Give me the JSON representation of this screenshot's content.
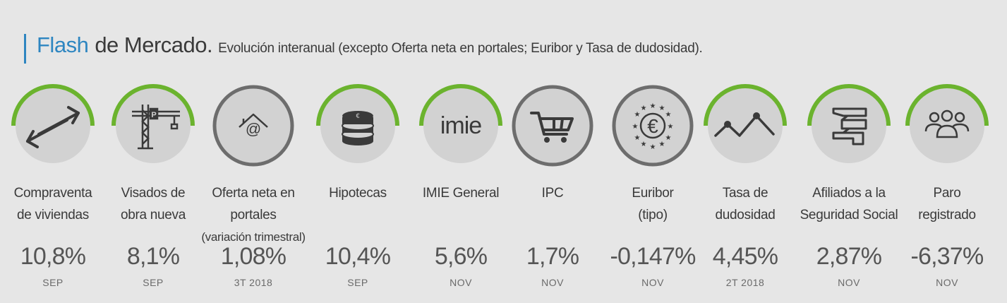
{
  "header": {
    "title_part1": "Flash",
    "title_part2": "de Mercado.",
    "subtitle": "Evolución interanual (excepto Oferta neta en portales; Euribor y Tasa de dudosidad).",
    "accent_color": "#2e86c1"
  },
  "colors": {
    "arc": "#6bb32e",
    "circle": "#d2d2d2",
    "icon": "#3a3a3a"
  },
  "items": [
    {
      "icon": "exchange-arrows-icon",
      "label_line1": "Compraventa",
      "label_line2": "de viviendas",
      "value": "10,8%",
      "period": "SEP"
    },
    {
      "icon": "crane-icon",
      "label_line1": "Visados de",
      "label_line2": "obra nueva",
      "value": "8,1%",
      "period": "SEP"
    },
    {
      "icon": "house-at-icon",
      "label_line1": "Oferta neta en portales",
      "label_line2": "(variación trimestral)",
      "value": "1,08%",
      "period": "3T 2018"
    },
    {
      "icon": "coin-stack-icon",
      "label_line1": "Hipotecas",
      "label_line2": "",
      "value": "10,4%",
      "period": "SEP"
    },
    {
      "icon": "imie-logo-icon",
      "icon_text": "imie",
      "label_line1": "IMIE General",
      "label_line2": "",
      "value": "5,6%",
      "period": "NOV"
    },
    {
      "icon": "shopping-cart-icon",
      "label_line1": "IPC",
      "label_line2": "",
      "value": "1,7%",
      "period": "NOV"
    },
    {
      "icon": "euro-stars-icon",
      "label_line1": "Euribor",
      "label_line2": "(tipo)",
      "value": "-0,147%",
      "period": "NOV"
    },
    {
      "icon": "trend-line-icon",
      "label_line1": "Tasa de",
      "label_line2": "dudosidad",
      "value": "4,45%",
      "period": "2T 2018"
    },
    {
      "icon": "ss-logo-icon",
      "label_line1": "Afiliados a la",
      "label_line2": "Seguridad Social",
      "value": "2,87%",
      "period": "NOV"
    },
    {
      "icon": "people-group-icon",
      "label_line1": "Paro",
      "label_line2": "registrado",
      "value": "-6,37%",
      "period": "NOV"
    }
  ]
}
